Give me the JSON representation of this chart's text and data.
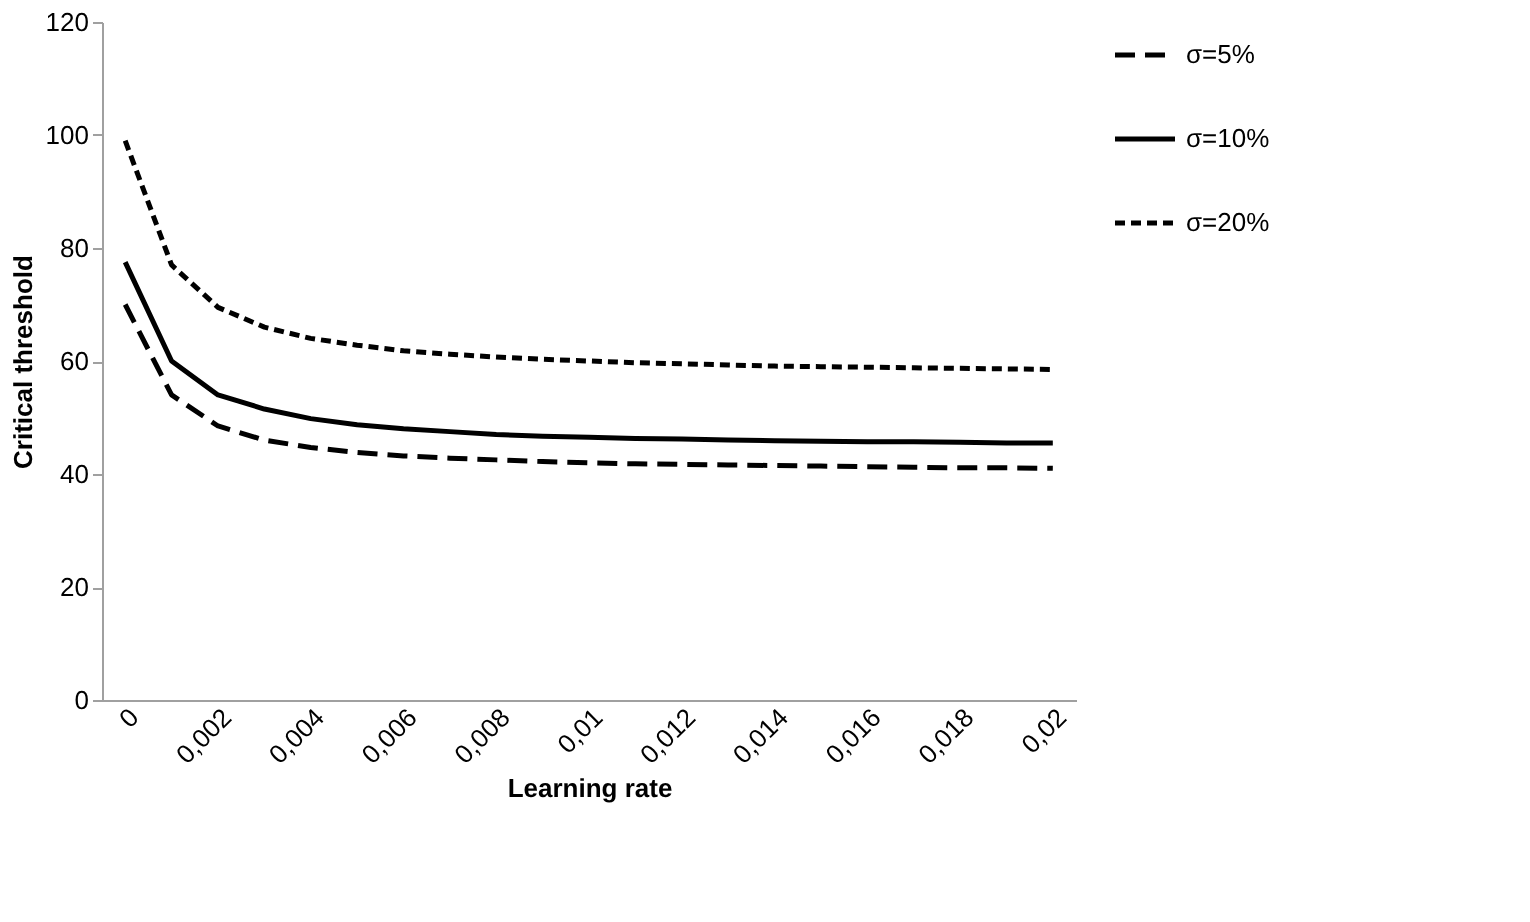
{
  "chart_data": {
    "type": "line",
    "xlabel": "Learning rate",
    "ylabel": "Critical threshold",
    "categories": [
      "0",
      null,
      "0,002",
      null,
      "0,004",
      null,
      "0,006",
      null,
      "0,008",
      null,
      "0,01",
      null,
      "0,012",
      null,
      "0,014",
      null,
      "0,016",
      null,
      "0,018",
      null,
      "0,02"
    ],
    "series": [
      {
        "name": "σ=5%",
        "color": "#000000",
        "line_style": "dashed",
        "values": [
          70,
          54,
          48.5,
          46,
          44.7,
          43.8,
          43.2,
          42.8,
          42.5,
          42.2,
          42,
          41.8,
          41.7,
          41.6,
          41.5,
          41.4,
          41.3,
          41.2,
          41.1,
          41.1,
          41
        ]
      },
      {
        "name": "σ=10%",
        "color": "#000000",
        "line_style": "solid",
        "values": [
          77.5,
          60,
          54,
          51.5,
          49.8,
          48.7,
          48,
          47.5,
          47,
          46.7,
          46.5,
          46.3,
          46.2,
          46,
          45.9,
          45.8,
          45.7,
          45.7,
          45.6,
          45.5,
          45.5
        ]
      },
      {
        "name": "σ=20%",
        "color": "#000000",
        "line_style": "dotted",
        "values": [
          99,
          77,
          69.5,
          66,
          64,
          62.8,
          61.8,
          61.2,
          60.7,
          60.3,
          60,
          59.7,
          59.5,
          59.3,
          59.1,
          59,
          58.9,
          58.8,
          58.7,
          58.6,
          58.5
        ]
      }
    ],
    "ylim": [
      0,
      120
    ],
    "yticks": [
      0,
      20,
      40,
      60,
      80,
      100,
      120
    ],
    "grid": false,
    "legend": "right",
    "marker": "none"
  }
}
